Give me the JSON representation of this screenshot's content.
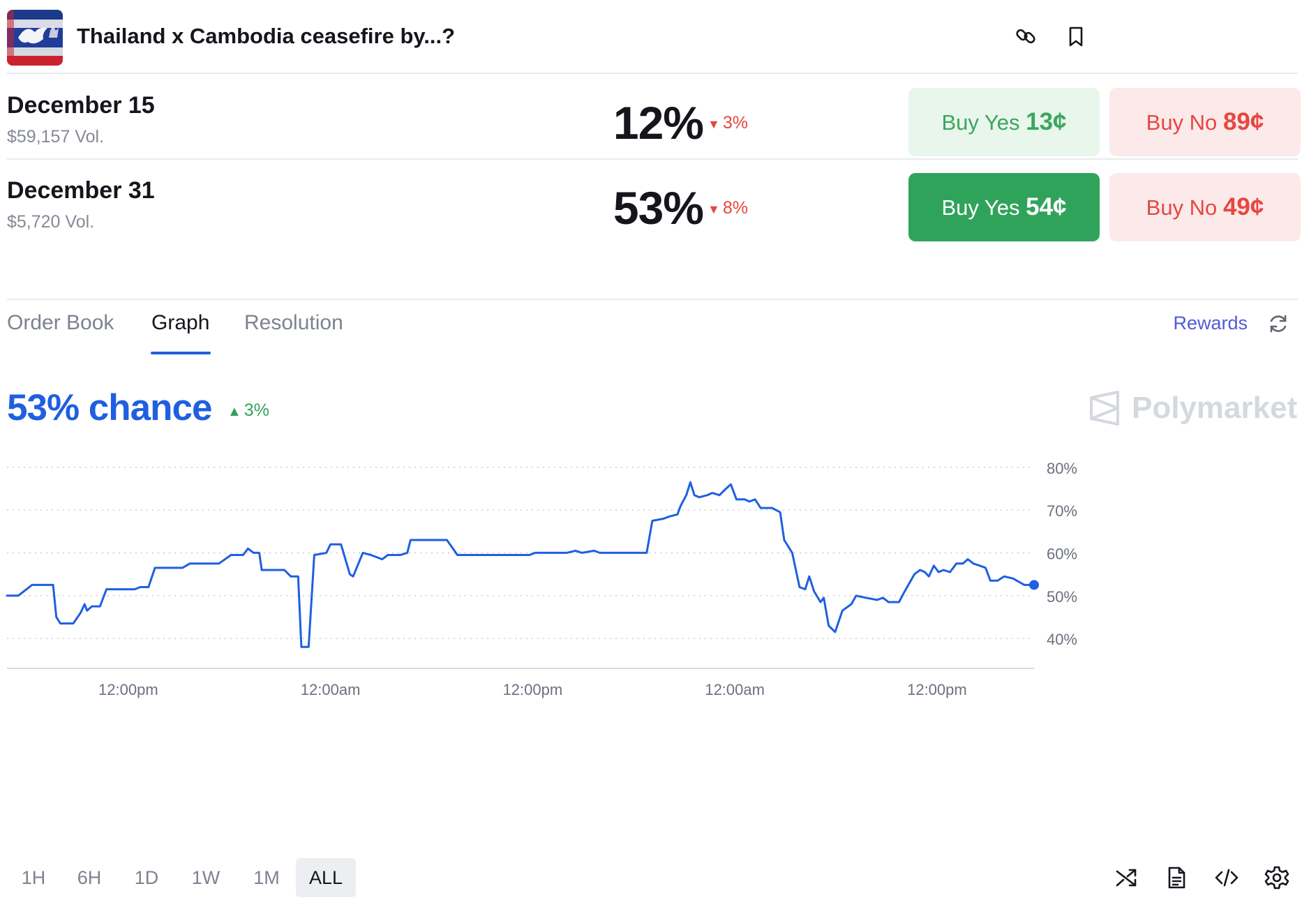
{
  "header": {
    "title": "Thailand x Cambodia ceasefire by...?"
  },
  "outcomes": [
    {
      "name": "December 15",
      "volume": "$59,157 Vol.",
      "percent": "12%",
      "change": "3%",
      "change_direction": "down",
      "yes_label": "Buy Yes",
      "yes_price": "13¢",
      "no_label": "Buy No",
      "no_price": "89¢"
    },
    {
      "name": "December 31",
      "volume": "$5,720 Vol.",
      "percent": "53%",
      "change": "8%",
      "change_direction": "down",
      "yes_label": "Buy Yes",
      "yes_price": "54¢",
      "no_label": "Buy No",
      "no_price": "49¢"
    }
  ],
  "tabs": [
    {
      "label": "Order Book",
      "active": false
    },
    {
      "label": "Graph",
      "active": true
    },
    {
      "label": "Resolution",
      "active": false
    }
  ],
  "rewards_label": "Rewards",
  "chance": {
    "label": "53% chance",
    "change": "3%",
    "change_direction": "up"
  },
  "watermark": "Polymarket",
  "colors": {
    "accent": "#1f5fe0",
    "green": "#30a35b",
    "red": "#e64740",
    "rewards": "#4f5bd5"
  },
  "icons": {
    "header": [
      "link-icon",
      "bookmark-icon"
    ],
    "footer": [
      "shuffle-icon",
      "document-icon",
      "code-icon",
      "settings-icon"
    ],
    "tabs": [
      "refresh-icon"
    ]
  },
  "time_ranges": [
    {
      "label": "1H",
      "active": false
    },
    {
      "label": "6H",
      "active": false
    },
    {
      "label": "1D",
      "active": false
    },
    {
      "label": "1W",
      "active": false
    },
    {
      "label": "1M",
      "active": false
    },
    {
      "label": "ALL",
      "active": true
    }
  ],
  "chart_data": {
    "type": "line",
    "title": "",
    "xlabel": "",
    "ylabel": "",
    "x_tick_labels": [
      "12:00pm",
      "12:00am",
      "12:00pm",
      "12:00am",
      "12:00pm"
    ],
    "y_tick_labels": [
      "80%",
      "70%",
      "60%",
      "50%",
      "40%"
    ],
    "y_ticks": [
      80,
      70,
      60,
      50,
      40
    ],
    "ylim": [
      33,
      81.6
    ],
    "x_range_hours": [
      0,
      127
    ],
    "x_tick_hours": [
      15,
      40,
      65,
      90,
      115
    ],
    "grid": true,
    "grid_style": "dotted-horizontal",
    "legend": "none",
    "y_axis_side": "right",
    "series": [
      {
        "color": "#1f5fe0",
        "points": [
          [
            0.0,
            50.0
          ],
          [
            1.4,
            50.0
          ],
          [
            3.1,
            52.5
          ],
          [
            5.7,
            52.5
          ],
          [
            6.1,
            45.0
          ],
          [
            6.6,
            43.5
          ],
          [
            8.2,
            43.5
          ],
          [
            9.1,
            46.0
          ],
          [
            9.6,
            48.0
          ],
          [
            9.9,
            46.5
          ],
          [
            10.5,
            47.5
          ],
          [
            11.5,
            47.5
          ],
          [
            12.3,
            51.5
          ],
          [
            15.8,
            51.5
          ],
          [
            16.5,
            52.0
          ],
          [
            17.5,
            52.0
          ],
          [
            18.3,
            56.5
          ],
          [
            21.7,
            56.5
          ],
          [
            22.6,
            57.5
          ],
          [
            26.2,
            57.5
          ],
          [
            27.7,
            59.5
          ],
          [
            29.2,
            59.5
          ],
          [
            29.8,
            61.0
          ],
          [
            30.5,
            60.0
          ],
          [
            31.2,
            60.0
          ],
          [
            31.5,
            56.0
          ],
          [
            34.3,
            56.0
          ],
          [
            35.1,
            54.5
          ],
          [
            36.0,
            54.5
          ],
          [
            36.4,
            38.0
          ],
          [
            37.3,
            38.0
          ],
          [
            38.0,
            59.5
          ],
          [
            39.5,
            60.0
          ],
          [
            40.0,
            62.0
          ],
          [
            41.3,
            62.0
          ],
          [
            42.4,
            55.0
          ],
          [
            42.8,
            54.5
          ],
          [
            44.0,
            60.0
          ],
          [
            45.0,
            59.5
          ],
          [
            46.4,
            58.5
          ],
          [
            47.1,
            59.5
          ],
          [
            48.6,
            59.5
          ],
          [
            49.5,
            60.0
          ],
          [
            49.9,
            63.0
          ],
          [
            51.4,
            63.0
          ],
          [
            54.4,
            63.0
          ],
          [
            55.7,
            59.5
          ],
          [
            56.5,
            59.5
          ],
          [
            64.6,
            59.5
          ],
          [
            65.3,
            60.0
          ],
          [
            68.2,
            60.0
          ],
          [
            69.2,
            60.0
          ],
          [
            70.3,
            60.5
          ],
          [
            71.1,
            60.0
          ],
          [
            72.6,
            60.5
          ],
          [
            73.3,
            60.0
          ],
          [
            74.5,
            60.0
          ],
          [
            79.1,
            60.0
          ],
          [
            79.8,
            67.5
          ],
          [
            81.2,
            68.0
          ],
          [
            81.9,
            68.5
          ],
          [
            82.9,
            69.0
          ],
          [
            83.3,
            71.0
          ],
          [
            84.0,
            73.5
          ],
          [
            84.5,
            76.5
          ],
          [
            85.0,
            73.5
          ],
          [
            85.6,
            73.0
          ],
          [
            86.6,
            73.5
          ],
          [
            87.2,
            74.0
          ],
          [
            88.1,
            73.5
          ],
          [
            88.9,
            75.0
          ],
          [
            89.5,
            76.0
          ],
          [
            90.2,
            72.5
          ],
          [
            91.2,
            72.5
          ],
          [
            91.8,
            72.0
          ],
          [
            92.5,
            72.5
          ],
          [
            93.2,
            70.5
          ],
          [
            94.6,
            70.5
          ],
          [
            95.6,
            69.5
          ],
          [
            96.1,
            63.0
          ],
          [
            97.1,
            60.0
          ],
          [
            98.0,
            52.0
          ],
          [
            98.7,
            51.5
          ],
          [
            99.2,
            54.5
          ],
          [
            99.8,
            51.0
          ],
          [
            100.6,
            48.5
          ],
          [
            101.0,
            49.5
          ],
          [
            101.6,
            43.0
          ],
          [
            102.4,
            41.5
          ],
          [
            103.3,
            46.5
          ],
          [
            104.4,
            48.0
          ],
          [
            105.0,
            50.0
          ],
          [
            106.2,
            49.5
          ],
          [
            107.6,
            49.0
          ],
          [
            108.3,
            49.5
          ],
          [
            109.0,
            48.5
          ],
          [
            110.3,
            48.5
          ],
          [
            111.0,
            51.0
          ],
          [
            112.2,
            55.0
          ],
          [
            112.9,
            56.0
          ],
          [
            113.5,
            55.5
          ],
          [
            114.0,
            54.5
          ],
          [
            114.6,
            57.0
          ],
          [
            115.2,
            55.5
          ],
          [
            115.8,
            56.0
          ],
          [
            116.6,
            55.5
          ],
          [
            117.4,
            57.5
          ],
          [
            118.2,
            57.5
          ],
          [
            118.8,
            58.5
          ],
          [
            119.5,
            57.5
          ],
          [
            120.3,
            57.0
          ],
          [
            121.0,
            56.5
          ],
          [
            121.6,
            53.5
          ],
          [
            122.5,
            53.5
          ],
          [
            123.3,
            54.5
          ],
          [
            124.4,
            54.0
          ],
          [
            125.8,
            52.5
          ],
          [
            127.0,
            52.5
          ]
        ]
      }
    ]
  }
}
